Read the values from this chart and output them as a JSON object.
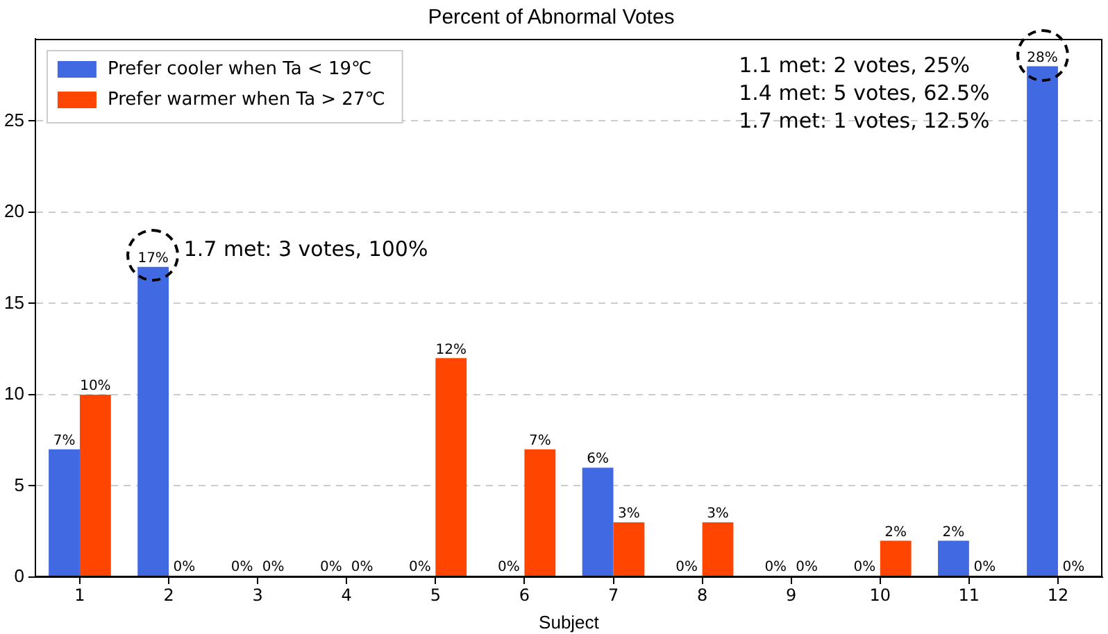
{
  "chart_data": {
    "type": "bar",
    "title": "Percent of Abnormal Votes",
    "xlabel": "Subject",
    "categories": [
      "1",
      "2",
      "3",
      "4",
      "5",
      "6",
      "7",
      "8",
      "9",
      "10",
      "11",
      "12"
    ],
    "series": [
      {
        "name": "Prefer cooler when Ta < 19℃",
        "color": "#4169e1",
        "values": [
          7,
          17,
          0,
          0,
          0,
          0,
          6,
          0,
          0,
          0,
          2,
          28
        ],
        "value_labels": [
          "7%",
          "17%",
          "0%",
          "0%",
          "0%",
          "0%",
          "6%",
          "0%",
          "0%",
          "0%",
          "2%",
          "28%"
        ]
      },
      {
        "name": "Prefer warmer when Ta > 27℃",
        "color": "#ff4500",
        "values": [
          10,
          0,
          0,
          0,
          12,
          7,
          3,
          3,
          0,
          2,
          0,
          0
        ],
        "value_labels": [
          "10%",
          "0%",
          "0%",
          "0%",
          "12%",
          "7%",
          "3%",
          "3%",
          "0%",
          "2%",
          "0%",
          "0%"
        ]
      }
    ],
    "ylim": [
      0,
      29.5
    ],
    "yticks": [
      0,
      5,
      10,
      15,
      20,
      25
    ],
    "grid": "y",
    "legend": "top left",
    "annotations": [
      "1.7 met: 3 votes, 100%",
      "1.1 met: 2 votes, 25%",
      "1.4 met: 5 votes, 62.5%",
      "1.7 met: 1 votes, 12.5%"
    ]
  }
}
